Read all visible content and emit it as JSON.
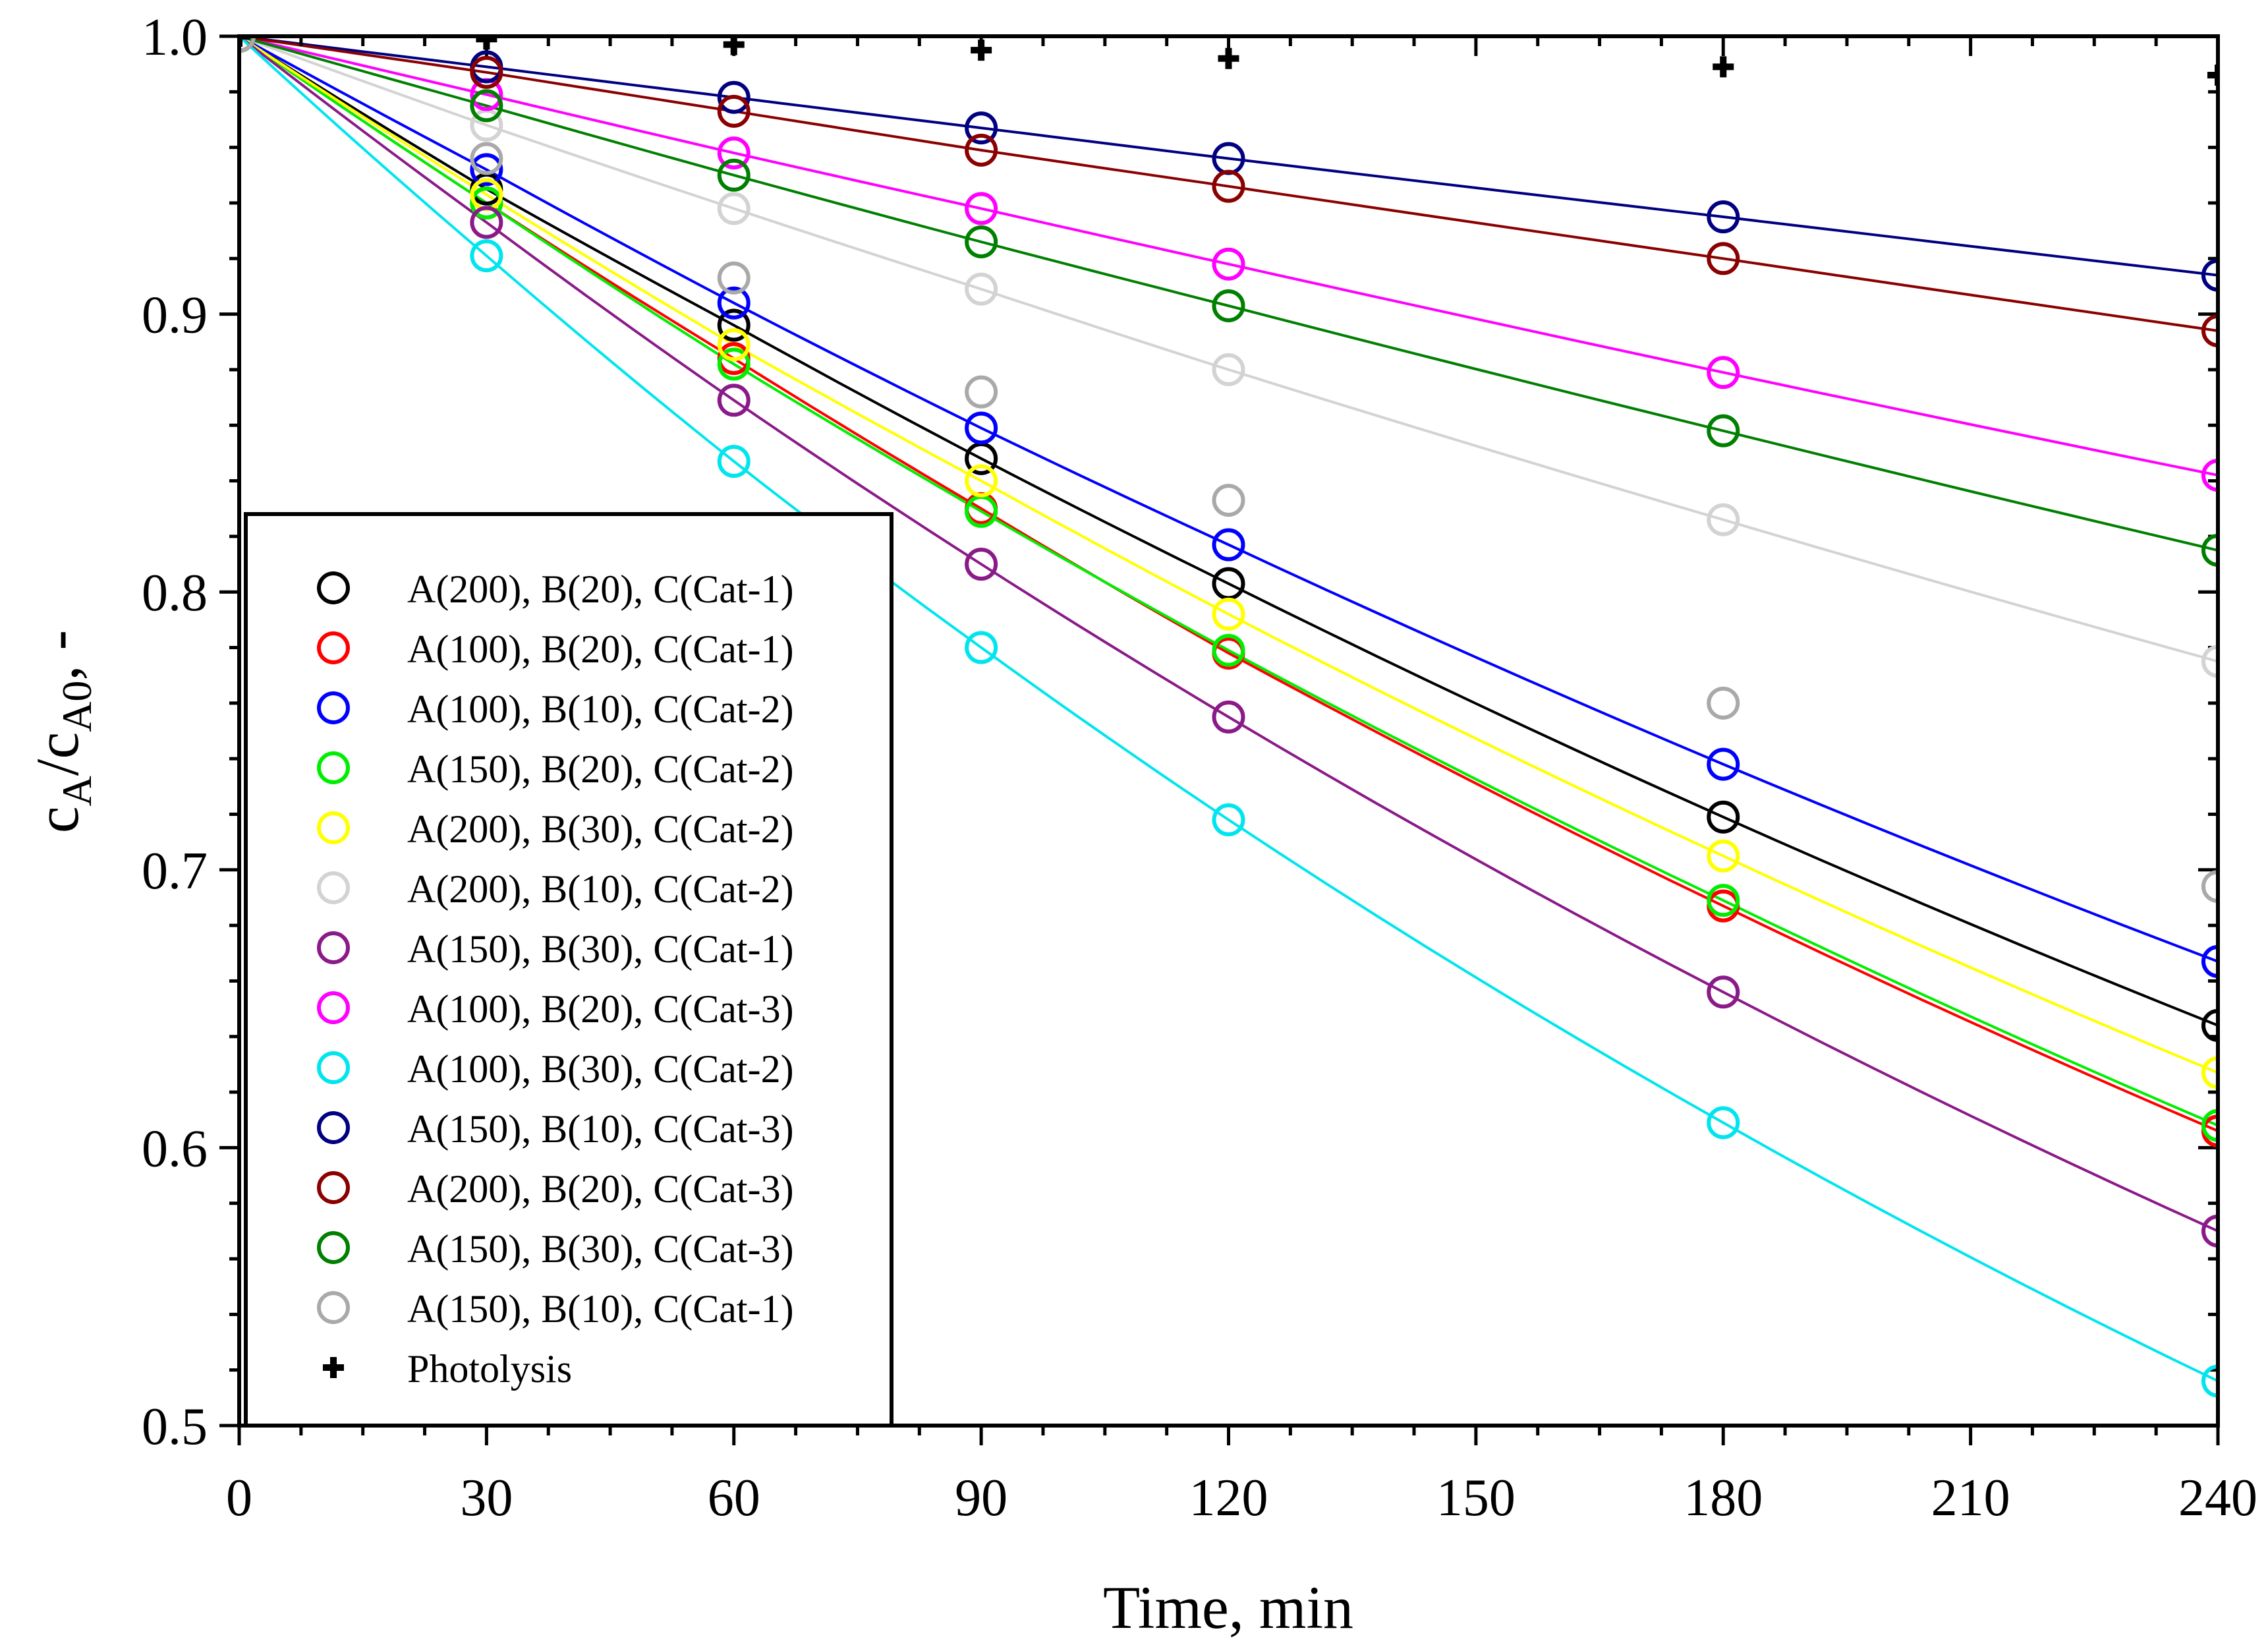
{
  "chart_data": {
    "type": "scatter",
    "xlabel": "Time, min",
    "ylabel": {
      "main": "c",
      "sub1": "A",
      "slash": "/c",
      "sub2": "A0",
      "suffix": ", -"
    },
    "xlim": [
      0,
      240
    ],
    "ylim": [
      0.5,
      1.0
    ],
    "xticks": [
      0,
      30,
      60,
      90,
      120,
      150,
      180,
      210,
      240
    ],
    "yticks": [
      0.5,
      0.6,
      0.7,
      0.8,
      0.9,
      1.0
    ],
    "ytick_labels": [
      "0.5",
      "0.6",
      "0.7",
      "0.8",
      "0.9",
      "1.0"
    ],
    "x": [
      0,
      30,
      60,
      90,
      120,
      180,
      240
    ],
    "legend_position": "left-lower",
    "series": [
      {
        "name": "A(200), B(20), C(Cat-1)",
        "color": "#000000",
        "marker": "circle",
        "values": [
          1.0,
          0.945,
          0.896,
          0.848,
          0.803,
          0.719,
          0.644
        ]
      },
      {
        "name": "A(100), B(20), C(Cat-1)",
        "color": "#ff0000",
        "marker": "circle",
        "values": [
          1.0,
          0.94,
          0.884,
          0.83,
          0.778,
          0.687,
          0.606
        ]
      },
      {
        "name": "A(100), B(10), C(Cat-2)",
        "color": "#0000ff",
        "marker": "circle",
        "values": [
          1.0,
          0.952,
          0.904,
          0.859,
          0.817,
          0.738,
          0.667
        ]
      },
      {
        "name": "A(150), B(20), C(Cat-2)",
        "color": "#00ee00",
        "marker": "circle",
        "values": [
          1.0,
          0.94,
          0.882,
          0.829,
          0.779,
          0.689,
          0.608
        ]
      },
      {
        "name": "A(200), B(30), C(Cat-2)",
        "color": "#ffff00",
        "marker": "circle",
        "values": [
          1.0,
          0.943,
          0.889,
          0.84,
          0.792,
          0.705,
          0.627
        ]
      },
      {
        "name": "A(200), B(10), C(Cat-2)",
        "color": "#d3d3d3",
        "marker": "circle",
        "values": [
          1.0,
          0.968,
          0.938,
          0.909,
          0.88,
          0.826,
          0.775
        ]
      },
      {
        "name": "A(150), B(30), C(Cat-1)",
        "color": "#8b1a89",
        "marker": "circle",
        "values": [
          1.0,
          0.933,
          0.869,
          0.81,
          0.755,
          0.656,
          0.57
        ]
      },
      {
        "name": "A(100), B(20), C(Cat-3)",
        "color": "#ff00ff",
        "marker": "circle",
        "values": [
          1.0,
          0.979,
          0.958,
          0.938,
          0.918,
          0.879,
          0.842
        ]
      },
      {
        "name": "A(100), B(30), C(Cat-2)",
        "color": "#00e5ee",
        "marker": "circle",
        "values": [
          1.0,
          0.921,
          0.847,
          0.78,
          0.718,
          0.609,
          0.516
        ]
      },
      {
        "name": "A(150), B(10), C(Cat-3)",
        "color": "#000080",
        "marker": "circle",
        "values": [
          1.0,
          0.989,
          0.978,
          0.967,
          0.956,
          0.935,
          0.914
        ]
      },
      {
        "name": "A(200), B(20), C(Cat-3)",
        "color": "#8b0000",
        "marker": "circle",
        "values": [
          1.0,
          0.987,
          0.973,
          0.959,
          0.946,
          0.92,
          0.894
        ]
      },
      {
        "name": "A(150), B(30), C(Cat-3)",
        "color": "#008000",
        "marker": "circle",
        "values": [
          1.0,
          0.975,
          0.95,
          0.926,
          0.903,
          0.858,
          0.815
        ]
      },
      {
        "name": "A(150), B(10), C(Cat-1)",
        "color": "#a9a9a9",
        "marker": "circle",
        "points_only": true,
        "values": [
          1.0,
          0.956,
          0.913,
          0.872,
          0.833,
          0.76,
          0.694
        ]
      },
      {
        "name": "Photolysis",
        "color": "#000000",
        "marker": "plus",
        "points_only": true,
        "values": [
          1.0,
          0.999,
          0.997,
          0.995,
          0.992,
          0.989,
          0.986
        ]
      }
    ]
  }
}
